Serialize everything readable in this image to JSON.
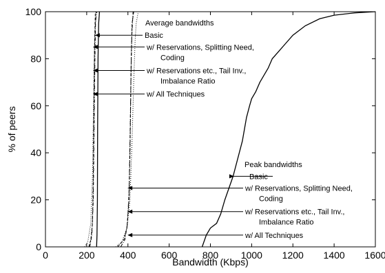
{
  "chart_data": {
    "type": "line",
    "title": "",
    "xlabel": "Bandwidth (Kbps)",
    "ylabel": "% of peers",
    "xlim": [
      0,
      1600
    ],
    "ylim": [
      0,
      100
    ],
    "x_ticks": [
      "0",
      "200",
      "400",
      "600",
      "800",
      "1000",
      "1200",
      "1400",
      "1600"
    ],
    "y_ticks": [
      "0",
      "20",
      "40",
      "60",
      "80",
      "100"
    ],
    "grid": false,
    "legend": null,
    "series": [
      {
        "style": "solid",
        "group": "average",
        "points": [
          [
            248,
            0
          ],
          [
            250,
            5
          ],
          [
            252,
            20
          ],
          [
            253,
            50
          ],
          [
            255,
            80
          ],
          [
            258,
            95
          ],
          [
            262,
            100
          ]
        ]
      },
      {
        "style": "dashed",
        "group": "average",
        "points": [
          [
            210,
            0
          ],
          [
            220,
            3
          ],
          [
            228,
            10
          ],
          [
            232,
            30
          ],
          [
            235,
            60
          ],
          [
            238,
            85
          ],
          [
            242,
            100
          ]
        ]
      },
      {
        "style": "dashdot",
        "group": "average",
        "points": [
          [
            215,
            0
          ],
          [
            225,
            5
          ],
          [
            232,
            20
          ],
          [
            236,
            50
          ],
          [
            240,
            80
          ],
          [
            243,
            95
          ],
          [
            246,
            100
          ]
        ]
      },
      {
        "style": "dotted",
        "group": "average",
        "points": [
          [
            190,
            0
          ],
          [
            205,
            2
          ],
          [
            220,
            10
          ],
          [
            228,
            30
          ],
          [
            233,
            60
          ],
          [
            238,
            85
          ],
          [
            242,
            95
          ],
          [
            250,
            100
          ]
        ]
      },
      {
        "style": "solid",
        "group": "peak",
        "points": [
          [
            760,
            0
          ],
          [
            780,
            5
          ],
          [
            800,
            8
          ],
          [
            830,
            10
          ],
          [
            850,
            14
          ],
          [
            870,
            20
          ],
          [
            890,
            25
          ],
          [
            910,
            30
          ],
          [
            925,
            35
          ],
          [
            940,
            40
          ],
          [
            955,
            45
          ],
          [
            965,
            50
          ],
          [
            975,
            55
          ],
          [
            990,
            60
          ],
          [
            1000,
            63
          ],
          [
            1020,
            66
          ],
          [
            1040,
            70
          ],
          [
            1060,
            73
          ],
          [
            1080,
            76
          ],
          [
            1100,
            80
          ],
          [
            1130,
            83
          ],
          [
            1160,
            86
          ],
          [
            1200,
            90
          ],
          [
            1260,
            94
          ],
          [
            1330,
            97
          ],
          [
            1400,
            98.5
          ],
          [
            1500,
            99.5
          ],
          [
            1600,
            100
          ]
        ]
      },
      {
        "style": "dashed",
        "group": "peak",
        "points": [
          [
            350,
            0
          ],
          [
            380,
            3
          ],
          [
            395,
            8
          ],
          [
            405,
            20
          ],
          [
            410,
            40
          ],
          [
            413,
            60
          ],
          [
            416,
            80
          ],
          [
            420,
            95
          ],
          [
            428,
            100
          ]
        ]
      },
      {
        "style": "dashdot",
        "group": "peak",
        "points": [
          [
            365,
            0
          ],
          [
            385,
            3
          ],
          [
            398,
            10
          ],
          [
            406,
            25
          ],
          [
            411,
            50
          ],
          [
            415,
            75
          ],
          [
            419,
            90
          ],
          [
            425,
            100
          ]
        ]
      },
      {
        "style": "dotted",
        "group": "peak",
        "points": [
          [
            340,
            0
          ],
          [
            370,
            2
          ],
          [
            395,
            8
          ],
          [
            410,
            20
          ],
          [
            420,
            45
          ],
          [
            428,
            70
          ],
          [
            435,
            88
          ],
          [
            440,
            95
          ],
          [
            450,
            100
          ]
        ]
      }
    ],
    "annotations": {
      "average_title": "Average bandwidths",
      "average_labels": [
        {
          "lines": [
            "Basic"
          ],
          "x_start": 240,
          "y": 90
        },
        {
          "lines": [
            "w/ Reservations, Splitting Need,",
            "Coding"
          ],
          "x_start": 230,
          "y": 85
        },
        {
          "lines": [
            "w/ Reservations etc., Tail Inv.,",
            "Imbalance Ratio"
          ],
          "x_start": 230,
          "y": 75
        },
        {
          "lines": [
            "w/ All Techniques"
          ],
          "x_start": 230,
          "y": 65
        }
      ],
      "peak_title": "Peak bandwidths",
      "peak_labels": [
        {
          "lines": [
            "Basic"
          ],
          "x_start": 915,
          "y": 30
        },
        {
          "lines": [
            "w/ Reservations, Splitting Need,",
            "Coding"
          ],
          "x_start": 398,
          "y": 25
        },
        {
          "lines": [
            "w/ Reservations etc., Tail Inv.,",
            "Imbalance Ratio"
          ],
          "x_start": 398,
          "y": 15
        },
        {
          "lines": [
            "w/ All Techniques"
          ],
          "x_start": 398,
          "y": 5
        }
      ]
    }
  }
}
